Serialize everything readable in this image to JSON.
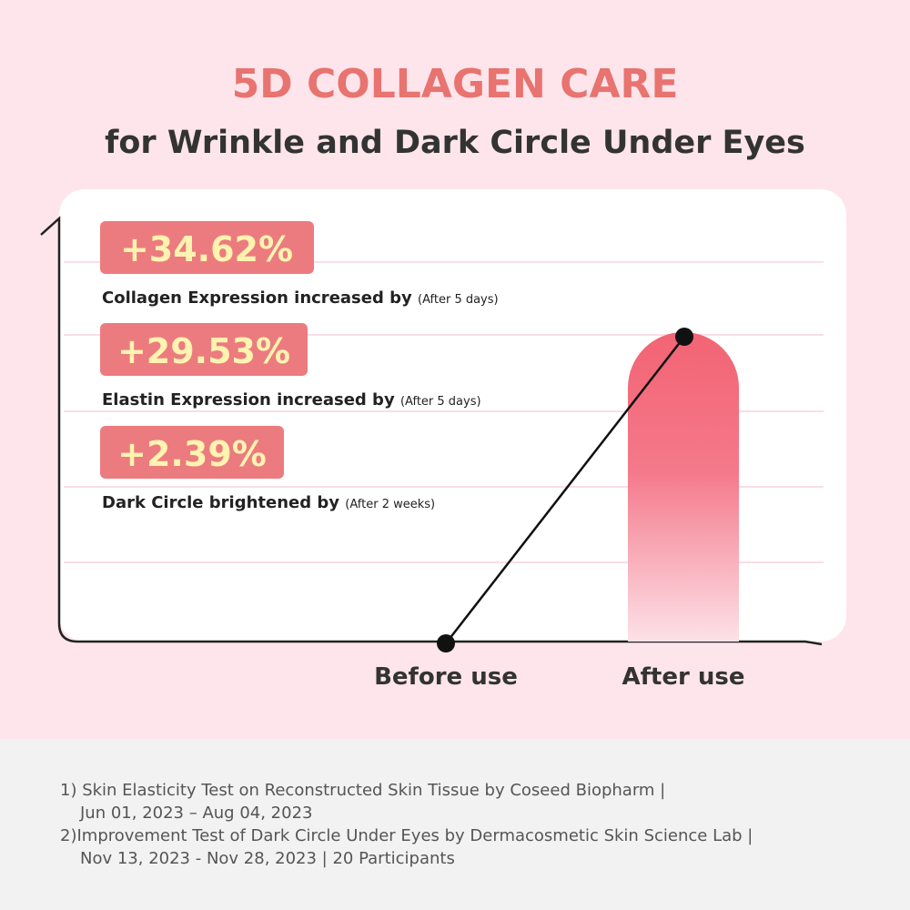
{
  "header": {
    "title": "5D COLLAGEN CARE",
    "subtitle": "for Wrinkle and Dark Circle Under Eyes"
  },
  "stats": [
    {
      "value": "+34.62%",
      "label": "Collagen Expression increased by",
      "note": "(After 5 days)"
    },
    {
      "value": "+29.53%",
      "label": "Elastin Expression increased by",
      "note": "(After 5 days)"
    },
    {
      "value": "+2.39%",
      "label": "Dark Circle brightened by",
      "note": "(After 2 weeks)"
    }
  ],
  "axis_labels": [
    "Before use",
    "After use"
  ],
  "footnotes": [
    "1) Skin Elasticity Test on Reconstructed Skin Tissue by Coseed Biopharm |",
    "Jun 01, 2023 – Aug 04, 2023",
    "2)Improvement Test of Dark Circle Under Eyes by Dermacosmetic Skin Science Lab |",
    "Nov 13, 2023 - Nov 28, 2023 | 20 Participants"
  ]
}
